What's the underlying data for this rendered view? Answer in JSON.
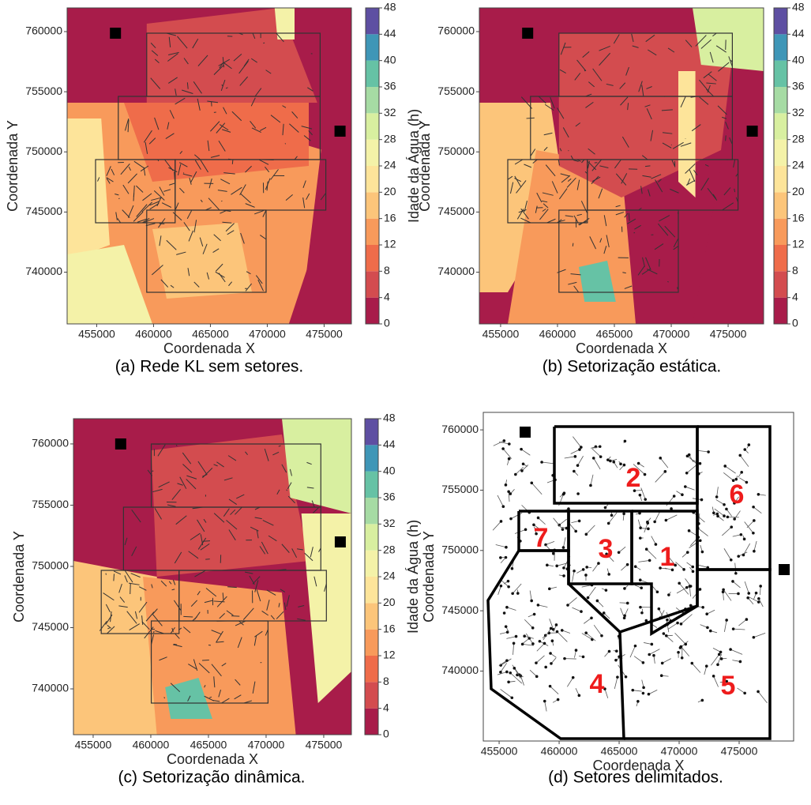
{
  "chart_data": [
    {
      "type": "contour",
      "caption": "(a) Rede KL sem setores.",
      "xlabel": "Coordenada X",
      "ylabel": "Coordenada Y",
      "xlim": [
        452400,
        477400
      ],
      "ylim": [
        735700,
        761970
      ],
      "xticks": [
        455000,
        460000,
        465000,
        470000,
        475000
      ],
      "yticks": [
        740000,
        745000,
        750000,
        755000,
        760000
      ],
      "colorbar": {
        "label": "Idade da Água (h)",
        "lim": [
          0,
          48
        ],
        "ticks": [
          0,
          4,
          8,
          12,
          16,
          20,
          24,
          28,
          32,
          36,
          40,
          44,
          48
        ],
        "colors": [
          "#a81c4a",
          "#d34c4f",
          "#ef6c4a",
          "#f89a5b",
          "#fcc57a",
          "#fde49a",
          "#f4f2a8",
          "#d8efa0",
          "#a6dba4",
          "#66c2a5",
          "#3f96b7",
          "#5e4fa2"
        ]
      }
    },
    {
      "type": "contour",
      "caption": "(b) Setorização estática.",
      "xlabel": "Coordenada X",
      "ylabel": "Coordenada Y",
      "xlim": [
        453130,
        478120
      ],
      "ylim": [
        735700,
        761970
      ],
      "xticks": [
        455000,
        460000,
        465000,
        470000,
        475000
      ],
      "yticks": [
        740000,
        745000,
        750000,
        755000,
        760000
      ],
      "colorbar": {
        "label": "Idade da Água (h)",
        "lim": [
          0,
          48
        ],
        "ticks": [
          0,
          4,
          8,
          12,
          16,
          20,
          24,
          28,
          32,
          36,
          40,
          44,
          48
        ],
        "colors": [
          "#a81c4a",
          "#d34c4f",
          "#ef6c4a",
          "#f89a5b",
          "#fcc57a",
          "#fde49a",
          "#f4f2a8",
          "#d8efa0",
          "#a6dba4",
          "#66c2a5",
          "#3f96b7",
          "#5e4fa2"
        ]
      }
    },
    {
      "type": "contour",
      "caption": "(c) Setorização dinâmica.",
      "xlabel": "Coordenada X",
      "ylabel": "Coordenada Y",
      "xlim": [
        453290,
        477400
      ],
      "ylim": [
        736260,
        762060
      ],
      "xticks": [
        455000,
        460000,
        465000,
        470000,
        475000
      ],
      "yticks": [
        740000,
        745000,
        750000,
        755000,
        760000
      ],
      "colorbar": {
        "label": "Idade da Água (h)",
        "lim": [
          0,
          48
        ],
        "ticks": [
          0,
          4,
          8,
          12,
          16,
          20,
          24,
          28,
          32,
          36,
          40,
          44,
          48
        ],
        "colors": [
          "#a81c4a",
          "#d34c4f",
          "#ef6c4a",
          "#f89a5b",
          "#fcc57a",
          "#fde49a",
          "#f4f2a8",
          "#d8efa0",
          "#a6dba4",
          "#66c2a5",
          "#3f96b7",
          "#5e4fa2"
        ]
      }
    },
    {
      "type": "network",
      "caption": "(d) Setores delimitados.",
      "xlabel": "Coordenada X",
      "ylabel": "Coordenada Y",
      "xlim": [
        453680,
        479540
      ],
      "ylim": [
        734200,
        761450
      ],
      "xticks": [
        455000,
        460000,
        465000,
        470000,
        475000
      ],
      "yticks": [
        740000,
        745000,
        750000,
        755000,
        760000
      ],
      "sector_labels": [
        "1",
        "2",
        "3",
        "4",
        "5",
        "6",
        "7"
      ]
    }
  ]
}
